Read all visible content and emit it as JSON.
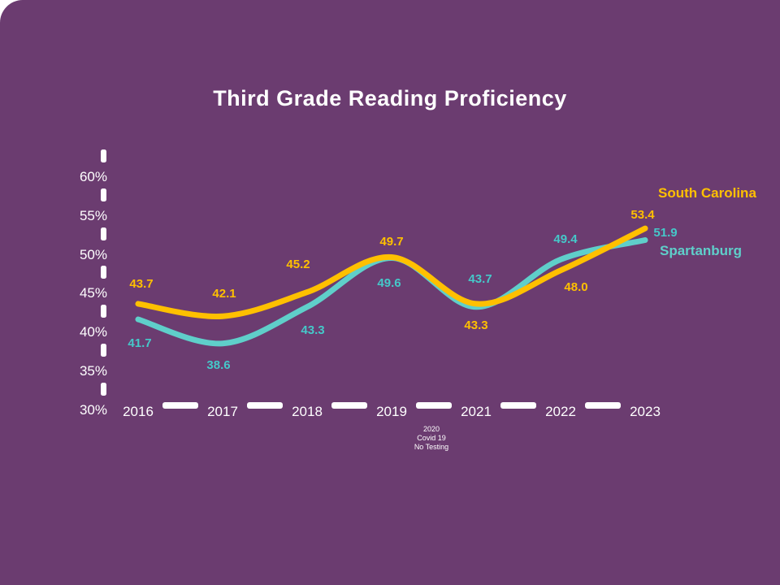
{
  "slide": {
    "title": "Third Grade Reading Proficiency",
    "background_color": "#6B3C70",
    "text_color": "#FFFFFF"
  },
  "chart_data": {
    "type": "line",
    "title": "Third Grade Reading Proficiency",
    "x": [
      "2016",
      "2017",
      "2018",
      "2019",
      "2021",
      "2022",
      "2023"
    ],
    "series": [
      {
        "name": "South Carolina",
        "color": "#FFC000",
        "values": [
          43.7,
          42.1,
          45.2,
          49.7,
          43.7,
          48.0,
          53.4
        ],
        "label_colors": [
          "#FFC000",
          "#FFC000",
          "#FFC000",
          "#FFC000",
          "#45C8C9",
          "#FFC000",
          "#FFC000"
        ]
      },
      {
        "name": "Spartanburg",
        "color": "#5FCFCA",
        "values": [
          41.7,
          38.6,
          43.3,
          49.6,
          43.3,
          49.4,
          51.9
        ],
        "label_colors": [
          "#45C8C9",
          "#45C8C9",
          "#45C8C9",
          "#45C8C9",
          "#FFC000",
          "#45C8C9",
          "#45C8C9"
        ]
      }
    ],
    "y_ticks": [
      {
        "value": 60,
        "label": "60%"
      },
      {
        "value": 55,
        "label": "55%"
      },
      {
        "value": 50,
        "label": "50%"
      },
      {
        "value": 45,
        "label": "45%"
      },
      {
        "value": 40,
        "label": "40%"
      },
      {
        "value": 35,
        "label": "35%"
      },
      {
        "value": 30,
        "label": "30%"
      }
    ],
    "ylim": [
      30,
      62
    ],
    "grid": false,
    "legend_position": "inline-right-of-lines",
    "tick_color": "#FFFFFF",
    "annotation": {
      "lines": [
        "2020",
        "Covid 19",
        "No Testing"
      ],
      "between": [
        "2019",
        "2021"
      ]
    }
  }
}
